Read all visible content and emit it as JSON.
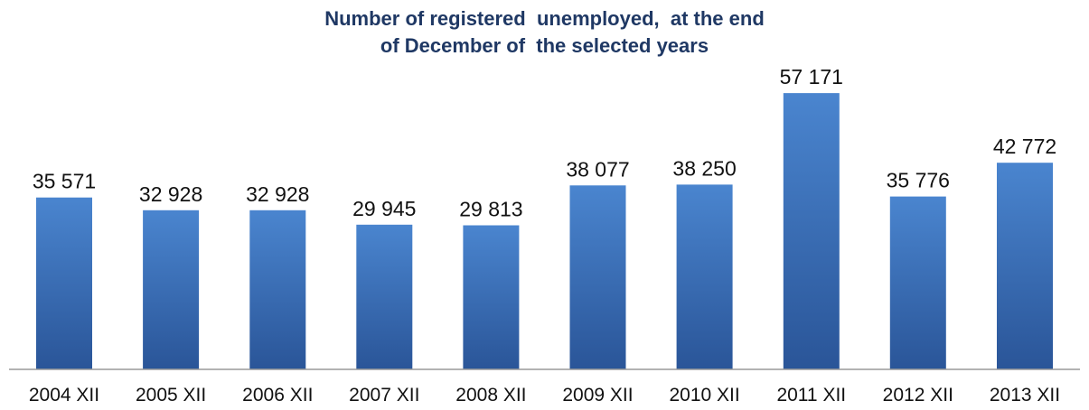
{
  "chart_data": {
    "type": "bar",
    "title_lines": [
      "Number of registered  unemployed,  at the end",
      "of December of  the selected years"
    ],
    "categories": [
      "2004 XII",
      "2005 XII",
      "2006 XII",
      "2007 XII",
      "2008 XII",
      "2009 XII",
      "2010 XII",
      "2011 XII",
      "2012 XII",
      "2013 XII"
    ],
    "values": [
      35571,
      32928,
      32928,
      29945,
      29813,
      38077,
      38250,
      57171,
      35776,
      42772
    ],
    "data_labels": [
      "35 571",
      "32 928",
      "32 928",
      "29 945",
      "29 813",
      "38 077",
      "38 250",
      "57 171",
      "35 776",
      "42 772"
    ],
    "xlabel": "",
    "ylabel": "",
    "ylim": [
      0,
      60000
    ],
    "grid": false,
    "legend": "none",
    "colors": {
      "bar_top": "#4a85cf",
      "bar_bottom": "#2a5598",
      "title": "#1f3864",
      "axis": "#9a9a9a"
    }
  }
}
